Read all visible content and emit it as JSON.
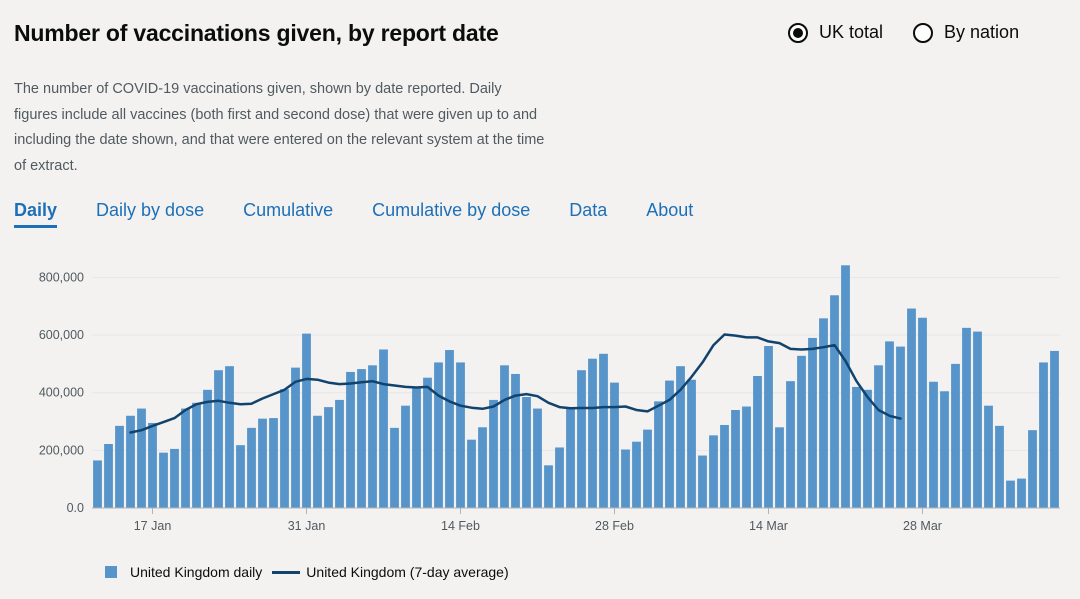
{
  "header": {
    "title": "Number of vaccinations given, by report date",
    "radio_uk": "UK total",
    "radio_nation": "By nation",
    "selected": "UK total"
  },
  "description": "The number of COVID-19 vaccinations given, shown by date reported. Daily figures include all vaccines (both first and second dose) that were given up to and including the date shown, and that were entered on the relevant system at the time of extract.",
  "tabs": [
    {
      "label": "Daily",
      "active": true
    },
    {
      "label": "Daily by dose",
      "active": false
    },
    {
      "label": "Cumulative",
      "active": false
    },
    {
      "label": "Cumulative by dose",
      "active": false
    },
    {
      "label": "Data",
      "active": false
    },
    {
      "label": "About",
      "active": false
    }
  ],
  "colors": {
    "bar": "#5694ca",
    "line": "#12436d",
    "accent": "#1d70b8"
  },
  "chart_data": {
    "type": "bar",
    "title": "",
    "xlabel": "",
    "ylabel": "",
    "ylim": [
      0,
      850000
    ],
    "y_ticks": [
      0,
      200000,
      400000,
      600000,
      800000
    ],
    "y_tick_labels": [
      "0.0",
      "200,000",
      "400,000",
      "600,000",
      "800,000"
    ],
    "x_ticks": [
      {
        "index": 5,
        "label": "17 Jan"
      },
      {
        "index": 19,
        "label": "31 Jan"
      },
      {
        "index": 33,
        "label": "14 Feb"
      },
      {
        "index": 47,
        "label": "28 Feb"
      },
      {
        "index": 61,
        "label": "14 Mar"
      },
      {
        "index": 75,
        "label": "28 Mar"
      }
    ],
    "grid": true,
    "legend_position": "bottom-left",
    "series": [
      {
        "name": "United Kingdom daily",
        "type": "bar",
        "start_date": "2021-01-12",
        "values": [
          165000,
          222000,
          285000,
          320000,
          345000,
          295000,
          192000,
          205000,
          345000,
          365000,
          410000,
          478000,
          492000,
          218000,
          278000,
          310000,
          312000,
          412000,
          487000,
          605000,
          320000,
          350000,
          375000,
          472000,
          482000,
          495000,
          550000,
          278000,
          355000,
          415000,
          452000,
          505000,
          548000,
          505000,
          237000,
          280000,
          375000,
          495000,
          465000,
          385000,
          345000,
          148000,
          210000,
          350000,
          478000,
          518000,
          535000,
          435000,
          203000,
          230000,
          272000,
          370000,
          442000,
          492000,
          445000,
          182000,
          252000,
          288000,
          340000,
          352000,
          458000,
          562000,
          280000,
          440000,
          528000,
          590000,
          658000,
          738000,
          842000,
          420000,
          410000,
          495000,
          578000,
          560000,
          692000,
          660000,
          438000,
          405000,
          500000,
          625000,
          612000,
          355000,
          285000,
          95000,
          102000,
          270000,
          505000,
          545000
        ]
      },
      {
        "name": "United Kingdom (7-day average)",
        "type": "line",
        "start_index": 3,
        "values": [
          262000,
          270000,
          285000,
          298000,
          312000,
          340000,
          360000,
          368000,
          372000,
          365000,
          360000,
          362000,
          380000,
          395000,
          410000,
          438000,
          448000,
          445000,
          435000,
          430000,
          432000,
          436000,
          440000,
          430000,
          425000,
          420000,
          418000,
          420000,
          390000,
          370000,
          355000,
          348000,
          344000,
          352000,
          375000,
          390000,
          395000,
          388000,
          365000,
          350000,
          346000,
          347000,
          347000,
          350000,
          350000,
          352000,
          340000,
          335000,
          355000,
          375000,
          410000,
          455000,
          505000,
          565000,
          602000,
          598000,
          592000,
          592000,
          578000,
          572000,
          552000,
          550000,
          552000,
          558000,
          565000,
          510000,
          440000,
          385000,
          340000,
          320000,
          310000
        ]
      }
    ]
  },
  "legend": {
    "daily": "United Kingdom daily",
    "avg": "United Kingdom (7-day average)"
  }
}
